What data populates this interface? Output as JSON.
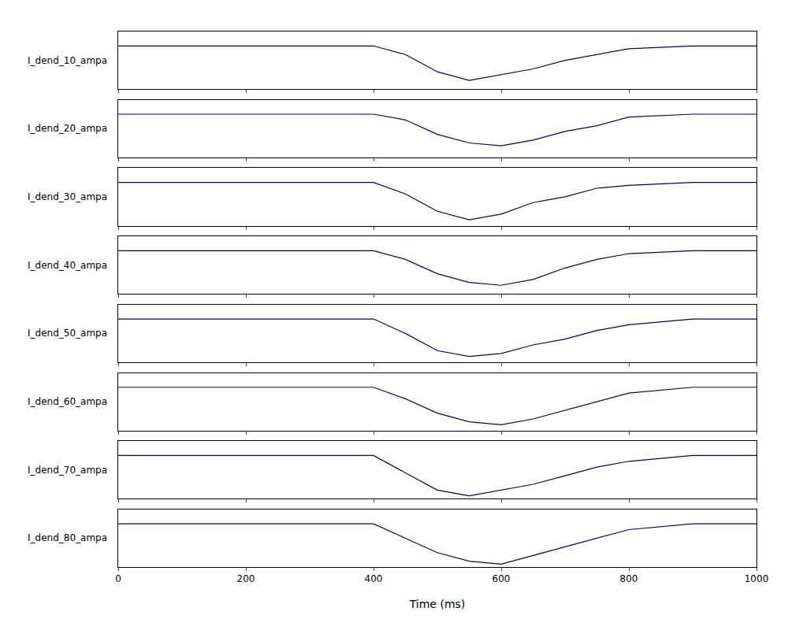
{
  "chart_data": [
    {
      "type": "line",
      "y_label": "I_dend_10_ampa",
      "color": "#00008b",
      "line_style": "solid",
      "grid": false,
      "tick_labels": false,
      "x": [
        0,
        100,
        200,
        300,
        400,
        450,
        500,
        550,
        600,
        650,
        700,
        750,
        800,
        900,
        1000
      ],
      "values": [
        0,
        0,
        0,
        0,
        0,
        -0.3,
        -0.9,
        -1.2,
        -1.0,
        -0.8,
        -0.5,
        -0.3,
        -0.1,
        0,
        0
      ],
      "xlim": [
        0,
        1000
      ],
      "xticks": [
        0,
        200,
        400,
        600,
        800,
        1000
      ],
      "ylim": [
        -1.5,
        0.5
      ]
    },
    {
      "type": "line",
      "y_label": "I_dend_20_ampa",
      "color": "#00008b",
      "line_style": "solid",
      "grid": false,
      "tick_labels": false,
      "x": [
        0,
        100,
        200,
        300,
        400,
        450,
        500,
        550,
        600,
        650,
        700,
        750,
        800,
        900,
        1000
      ],
      "values": [
        0,
        0,
        0,
        0,
        0,
        -0.2,
        -0.7,
        -1.0,
        -1.1,
        -0.9,
        -0.6,
        -0.4,
        -0.1,
        0,
        0
      ],
      "xlim": [
        0,
        1000
      ],
      "xticks": [
        0,
        200,
        400,
        600,
        800,
        1000
      ],
      "ylim": [
        -1.5,
        0.5
      ]
    },
    {
      "type": "line",
      "y_label": "I_dend_30_ampa",
      "color": "#00008b",
      "line_style": "solid",
      "grid": false,
      "tick_labels": false,
      "x": [
        0,
        100,
        200,
        300,
        400,
        450,
        500,
        550,
        600,
        650,
        700,
        750,
        800,
        900,
        1000
      ],
      "values": [
        0,
        0,
        0,
        0,
        0,
        -0.4,
        -1.0,
        -1.3,
        -1.1,
        -0.7,
        -0.5,
        -0.2,
        -0.1,
        0,
        0
      ],
      "xlim": [
        0,
        1000
      ],
      "xticks": [
        0,
        200,
        400,
        600,
        800,
        1000
      ],
      "ylim": [
        -1.5,
        0.5
      ]
    },
    {
      "type": "line",
      "y_label": "I_dend_40_ampa",
      "color": "#00008b",
      "line_style": "solid",
      "grid": false,
      "tick_labels": false,
      "x": [
        0,
        100,
        200,
        300,
        400,
        450,
        500,
        550,
        600,
        650,
        700,
        750,
        800,
        900,
        1000
      ],
      "values": [
        0,
        0,
        0,
        0,
        0,
        -0.3,
        -0.8,
        -1.1,
        -1.2,
        -1.0,
        -0.6,
        -0.3,
        -0.1,
        0,
        0
      ],
      "xlim": [
        0,
        1000
      ],
      "xticks": [
        0,
        200,
        400,
        600,
        800,
        1000
      ],
      "ylim": [
        -1.5,
        0.5
      ]
    },
    {
      "type": "line",
      "y_label": "I_dend_50_ampa",
      "color": "#00008b",
      "line_style": "solid",
      "grid": false,
      "tick_labels": false,
      "x": [
        0,
        100,
        200,
        300,
        400,
        450,
        500,
        550,
        600,
        650,
        700,
        750,
        800,
        900,
        1000
      ],
      "values": [
        0,
        0,
        0,
        0,
        0,
        -0.5,
        -1.1,
        -1.3,
        -1.2,
        -0.9,
        -0.7,
        -0.4,
        -0.2,
        0,
        0
      ],
      "xlim": [
        0,
        1000
      ],
      "xticks": [
        0,
        200,
        400,
        600,
        800,
        1000
      ],
      "ylim": [
        -1.5,
        0.5
      ]
    },
    {
      "type": "line",
      "y_label": "I_dend_60_ampa",
      "color": "#00008b",
      "line_style": "solid",
      "grid": false,
      "tick_labels": false,
      "x": [
        0,
        100,
        200,
        300,
        400,
        450,
        500,
        550,
        600,
        650,
        700,
        750,
        800,
        900,
        1000
      ],
      "values": [
        0,
        0,
        0,
        0,
        0,
        -0.4,
        -0.9,
        -1.2,
        -1.3,
        -1.1,
        -0.8,
        -0.5,
        -0.2,
        0,
        0
      ],
      "xlim": [
        0,
        1000
      ],
      "xticks": [
        0,
        200,
        400,
        600,
        800,
        1000
      ],
      "ylim": [
        -1.5,
        0.5
      ]
    },
    {
      "type": "line",
      "y_label": "I_dend_70_ampa",
      "color": "#00008b",
      "line_style": "solid",
      "grid": false,
      "tick_labels": false,
      "x": [
        0,
        100,
        200,
        300,
        400,
        450,
        500,
        550,
        600,
        650,
        700,
        750,
        800,
        900,
        1000
      ],
      "values": [
        0,
        0,
        0,
        0,
        0,
        -0.6,
        -1.2,
        -1.4,
        -1.2,
        -1.0,
        -0.7,
        -0.4,
        -0.2,
        0,
        0
      ],
      "xlim": [
        0,
        1000
      ],
      "xticks": [
        0,
        200,
        400,
        600,
        800,
        1000
      ],
      "ylim": [
        -1.5,
        0.5
      ]
    },
    {
      "type": "line",
      "y_label": "I_dend_80_ampa",
      "color": "#00008b",
      "line_style": "solid",
      "grid": false,
      "tick_labels": "x",
      "x_label": "Time (ms)",
      "x": [
        0,
        100,
        200,
        300,
        400,
        450,
        500,
        550,
        600,
        650,
        700,
        750,
        800,
        900,
        1000
      ],
      "values": [
        0,
        0,
        0,
        0,
        0,
        -0.5,
        -1.0,
        -1.3,
        -1.4,
        -1.1,
        -0.8,
        -0.5,
        -0.2,
        0,
        0
      ],
      "xlim": [
        0,
        1000
      ],
      "xticks": [
        0,
        200,
        400,
        600,
        800,
        1000
      ],
      "ylim": [
        -1.5,
        0.5
      ]
    }
  ]
}
